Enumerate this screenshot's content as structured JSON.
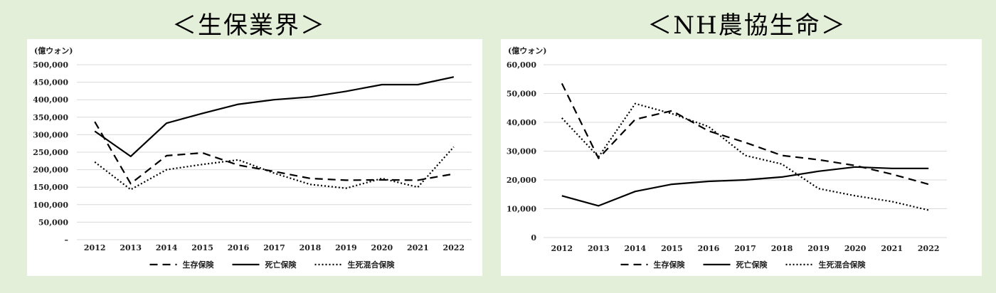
{
  "chart_data": [
    {
      "type": "line",
      "title": "＜生保業界＞",
      "unit_label": "(億ウォン)",
      "x": [
        "2012",
        "2013",
        "2014",
        "2015",
        "2016",
        "2017",
        "2018",
        "2019",
        "2020",
        "2021",
        "2022"
      ],
      "ylim": [
        0,
        500000
      ],
      "yticks": [
        0,
        50000,
        100000,
        150000,
        200000,
        250000,
        300000,
        350000,
        400000,
        450000,
        500000
      ],
      "ytick_labels": [
        "–",
        "50,000",
        "100,000",
        "150,000",
        "200,000",
        "250,000",
        "300,000",
        "350,000",
        "400,000",
        "450,000",
        "500,000"
      ],
      "grid": true,
      "legend_position": "bottom",
      "series": [
        {
          "name": "生存保険",
          "style": "dashed",
          "values": [
            337000,
            160000,
            240000,
            248000,
            213000,
            195000,
            175000,
            170000,
            171000,
            170000,
            188000
          ]
        },
        {
          "name": "死亡保険",
          "style": "solid",
          "values": [
            310000,
            238000,
            333000,
            361000,
            387000,
            400000,
            408000,
            424000,
            443000,
            443000,
            465000
          ]
        },
        {
          "name": "生死混合保険",
          "style": "dotted",
          "values": [
            222000,
            143000,
            200000,
            215000,
            228000,
            190000,
            158000,
            147000,
            175000,
            150000,
            265000
          ]
        }
      ]
    },
    {
      "type": "line",
      "title": "＜NH農協生命＞",
      "unit_label": "(億ウォン)",
      "x": [
        "2012",
        "2013",
        "2014",
        "2015",
        "2016",
        "2017",
        "2018",
        "2019",
        "2020",
        "2021",
        "2022"
      ],
      "ylim": [
        0,
        60000
      ],
      "yticks": [
        0,
        10000,
        20000,
        30000,
        40000,
        50000,
        60000
      ],
      "ytick_labels": [
        "0",
        "10,000",
        "20,000",
        "30,000",
        "40,000",
        "50,000",
        "60,000"
      ],
      "grid": true,
      "legend_position": "bottom",
      "series": [
        {
          "name": "生存保険",
          "style": "dashed",
          "values": [
            53500,
            27500,
            41000,
            44000,
            37000,
            33000,
            28500,
            27000,
            25000,
            22000,
            18500
          ]
        },
        {
          "name": "死亡保険",
          "style": "solid",
          "values": [
            14500,
            11000,
            16000,
            18500,
            19500,
            20000,
            21000,
            23000,
            24500,
            24000,
            24000
          ]
        },
        {
          "name": "生死混合保険",
          "style": "dotted",
          "values": [
            41500,
            28000,
            46500,
            43000,
            38500,
            28500,
            25500,
            17000,
            14500,
            12500,
            9500
          ]
        }
      ]
    }
  ],
  "colors": {
    "background": "#e3efd9",
    "card": "#ffffff",
    "line": "#000000",
    "grid": "#d9d9d9"
  }
}
